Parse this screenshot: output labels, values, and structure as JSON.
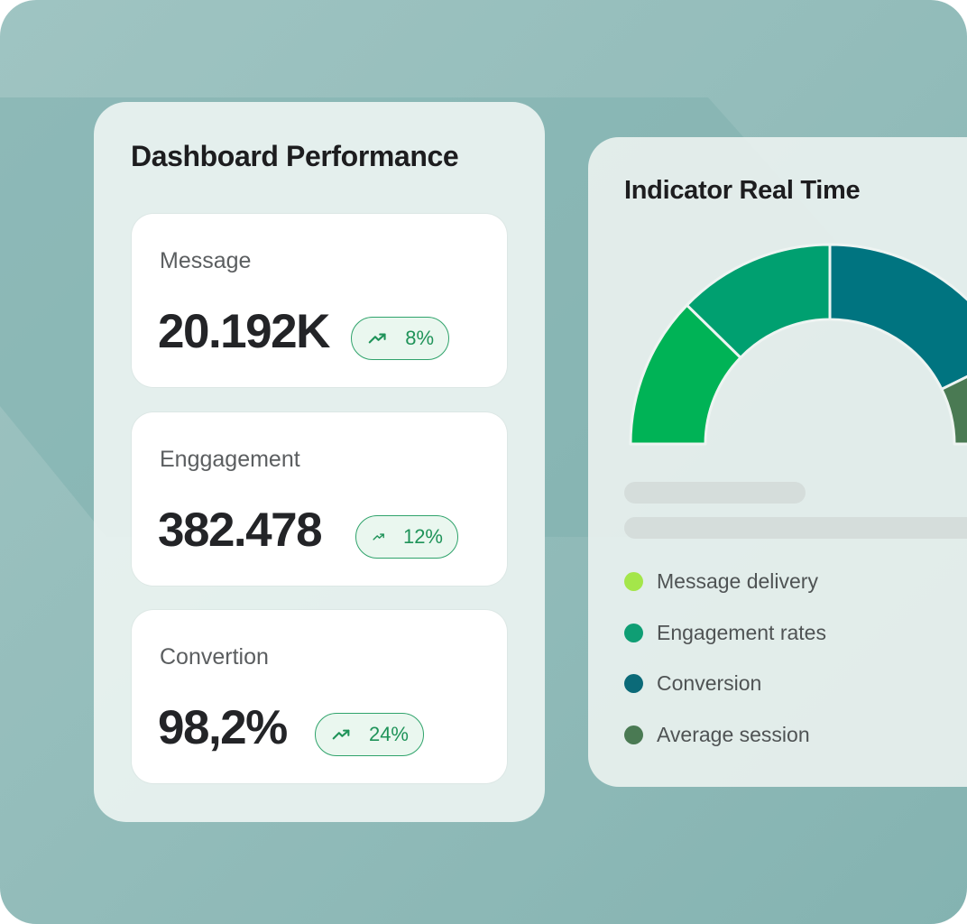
{
  "performance": {
    "title": "Dashboard Performance",
    "metrics": [
      {
        "label": "Message",
        "value": "20.192K",
        "change": "8%",
        "trend_icon": "trending-up-icon"
      },
      {
        "label": "Enggagement",
        "value": "382.478",
        "change": "12%",
        "trend_icon": "trending-up-icon"
      },
      {
        "label": "Convertion",
        "value": "98,2%",
        "change": "24%",
        "trend_icon": "trending-up-icon"
      }
    ]
  },
  "indicator": {
    "title": "Indicator Real Time",
    "legend": [
      {
        "label": "Message delivery",
        "color": "#a4e64a"
      },
      {
        "label": "Engagement rates",
        "color": "#0f9e74"
      },
      {
        "label": "Conversion",
        "color": "#0b6a78"
      },
      {
        "label": "Average session",
        "color": "#4a7a53"
      }
    ]
  },
  "colors": {
    "gauge_segment_1": "#00b356",
    "gauge_segment_2": "#00a070",
    "gauge_segment_3": "#007480",
    "gauge_segment_4": "#4a7a53",
    "badge_accent": "#1f9359"
  }
}
